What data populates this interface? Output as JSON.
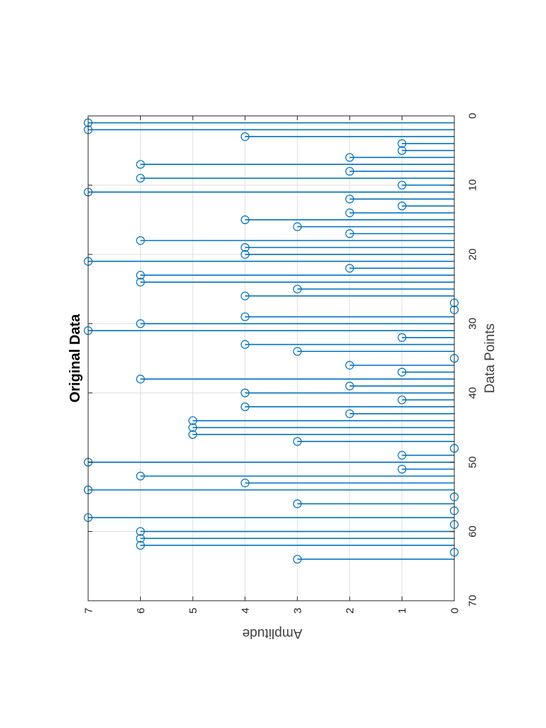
{
  "chart_data": {
    "type": "stem",
    "orientation": "rotated-90-clockwise",
    "title": "Original Data",
    "xlabel": "Data Points",
    "ylabel": "Amplitude",
    "xlim": [
      0,
      70
    ],
    "ylim": [
      0,
      7
    ],
    "xticks": [
      "0",
      "10",
      "20",
      "30",
      "40",
      "50",
      "60",
      "70"
    ],
    "yticks": [
      "0",
      "1",
      "2",
      "3",
      "4",
      "5",
      "6",
      "7"
    ],
    "grid": true,
    "series": [
      {
        "name": "Original Data",
        "color": "#0072BD",
        "x": [
          1,
          2,
          3,
          4,
          5,
          6,
          7,
          8,
          9,
          10,
          11,
          12,
          13,
          14,
          15,
          16,
          17,
          18,
          19,
          20,
          21,
          22,
          23,
          24,
          25,
          26,
          27,
          28,
          29,
          30,
          31,
          32,
          33,
          34,
          35,
          36,
          37,
          38,
          39,
          40,
          41,
          42,
          43,
          44,
          45,
          46,
          47,
          48,
          49,
          50,
          51,
          52,
          53,
          54,
          55,
          56,
          57,
          58,
          59,
          60,
          61,
          62,
          63,
          64
        ],
        "values": [
          7,
          7,
          4,
          1,
          1,
          2,
          6,
          2,
          6,
          1,
          7,
          2,
          1,
          2,
          4,
          3,
          2,
          6,
          4,
          4,
          7,
          2,
          6,
          6,
          3,
          4,
          0,
          0,
          4,
          6,
          7,
          1,
          4,
          3,
          0,
          2,
          1,
          6,
          2,
          4,
          1,
          4,
          2,
          5,
          5,
          5,
          3,
          0,
          1,
          7,
          1,
          6,
          4,
          7,
          0,
          3,
          0,
          7,
          0,
          6,
          6,
          6,
          0,
          3
        ]
      }
    ]
  }
}
